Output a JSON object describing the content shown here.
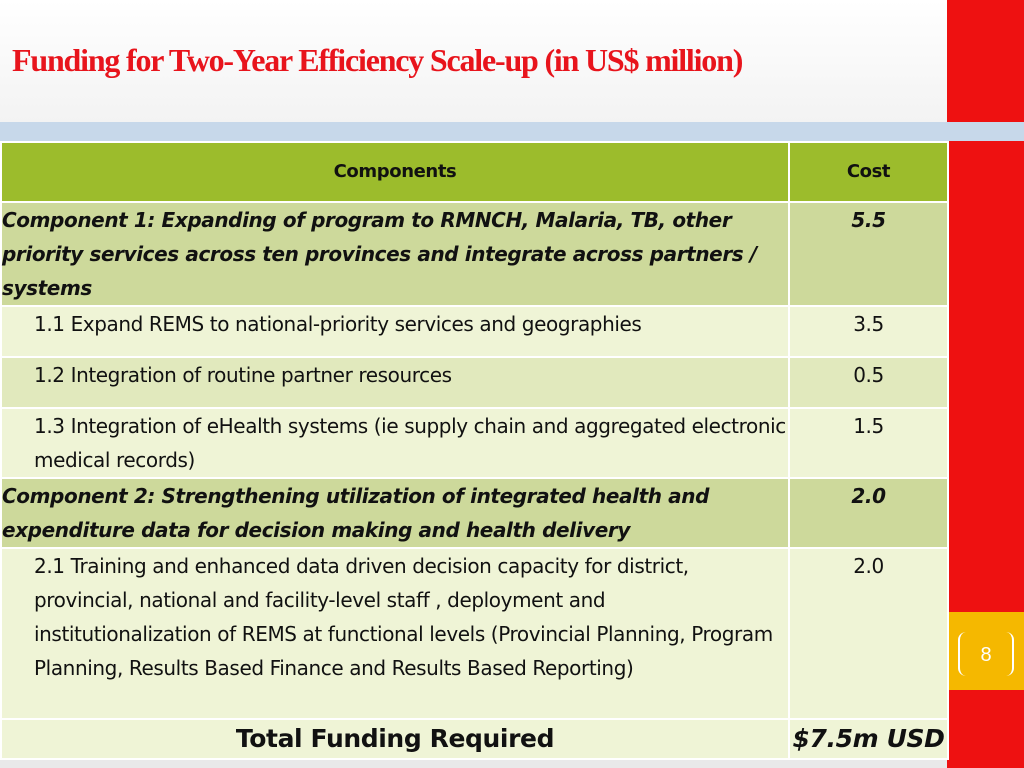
{
  "slide": {
    "title": "Funding for Two-Year Efficiency Scale-up (in US$ million)",
    "page_number": "8"
  },
  "table": {
    "headers": {
      "components": "Components",
      "cost": "Cost"
    },
    "rows": [
      {
        "kind": "component",
        "label": "Component 1: Expanding of program to RMNCH, Malaria, TB, other priority services across ten provinces and integrate across partners / systems",
        "cost": "5.5"
      },
      {
        "kind": "sub",
        "label": "1.1 Expand REMS to national-priority services and geographies",
        "cost": "3.5"
      },
      {
        "kind": "sub",
        "label": "1.2 Integration of routine partner resources",
        "cost": "0.5"
      },
      {
        "kind": "sub",
        "label": "1.3  Integration of eHealth systems (ie supply chain and aggregated electronic medical records)",
        "cost": "1.5"
      },
      {
        "kind": "component",
        "label": "Component 2: Strengthening utilization of integrated health and expenditure data for decision making and health delivery",
        "cost": "2.0"
      },
      {
        "kind": "sub",
        "label": "2.1 Training and enhanced data driven decision capacity for district, provincial, national and facility-level staff , deployment and institutionalization of REMS at functional levels (Provincial Planning, Program Planning, Results Based Finance and Results Based Reporting)",
        "cost": "2.0"
      }
    ],
    "total": {
      "label": "Total Funding Required",
      "cost": "$7.5m USD"
    }
  },
  "colors": {
    "title_red": "#e8141c",
    "accent_red": "#ee1111",
    "page_badge": "#f5b800",
    "header_green": "#9cbc2c",
    "component_row": "#cdd99b",
    "sub_row_light": "#eff4d6",
    "sub_row_dark": "#e1e9bd",
    "band_blue": "#c7d8ea"
  }
}
